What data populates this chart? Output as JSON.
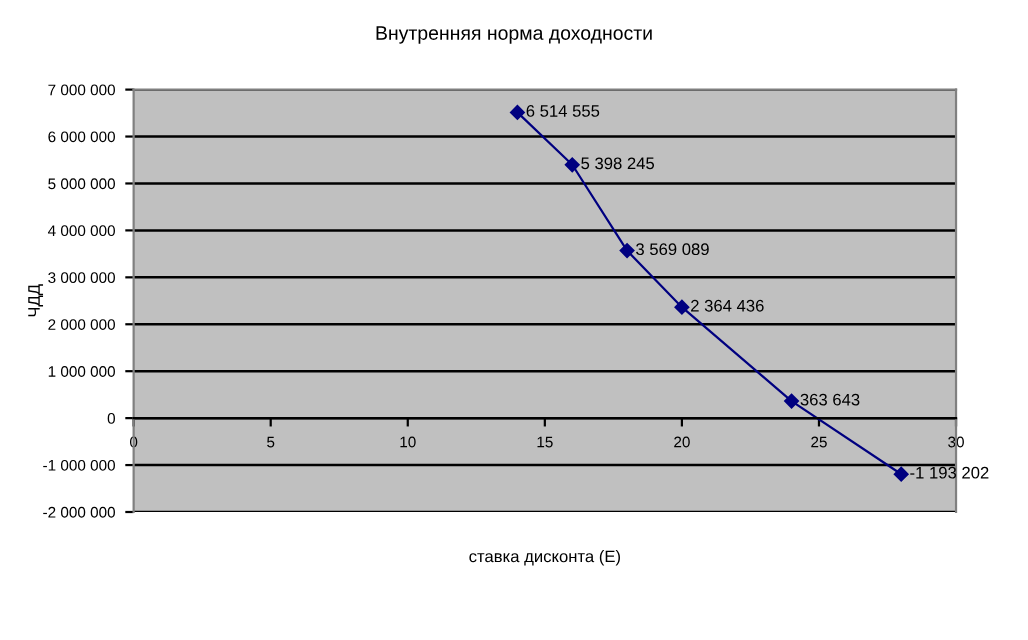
{
  "chart_data": {
    "type": "line",
    "title": "Внутренняя норма доходности",
    "xlabel": "ставка дисконта (Е)",
    "ylabel": "ЧДД",
    "x": [
      14,
      16,
      18,
      20,
      24,
      28
    ],
    "series": [
      {
        "color": "#000080",
        "values": [
          6514555,
          5398245,
          3569089,
          2364436,
          363643,
          -1193202
        ],
        "value_labels": [
          "6 514 555",
          "5 398 245",
          "3 569 089",
          "2 364 436",
          "363 643",
          "-1 193 202"
        ]
      }
    ],
    "xlim": [
      0,
      30
    ],
    "xticks": [
      0,
      5,
      10,
      15,
      20,
      25,
      30
    ],
    "ylim": [
      -2000000,
      7000000
    ],
    "yticks": [
      {
        "value": -2000000,
        "label": "-2 000 000"
      },
      {
        "value": -1000000,
        "label": "-1 000 000"
      },
      0,
      {
        "value": 1000000,
        "label": "1 000 000"
      },
      {
        "value": 2000000,
        "label": "2 000 000"
      },
      {
        "value": 3000000,
        "label": "3 000 000"
      },
      {
        "value": 4000000,
        "label": "4 000 000"
      },
      {
        "value": 5000000,
        "label": "5 000 000"
      },
      {
        "value": 6000000,
        "label": "6 000 000"
      },
      {
        "value": 7000000,
        "label": "7 000 000"
      }
    ],
    "grid": "y",
    "marker": "diamond",
    "line_style": "solid",
    "legend": false
  }
}
